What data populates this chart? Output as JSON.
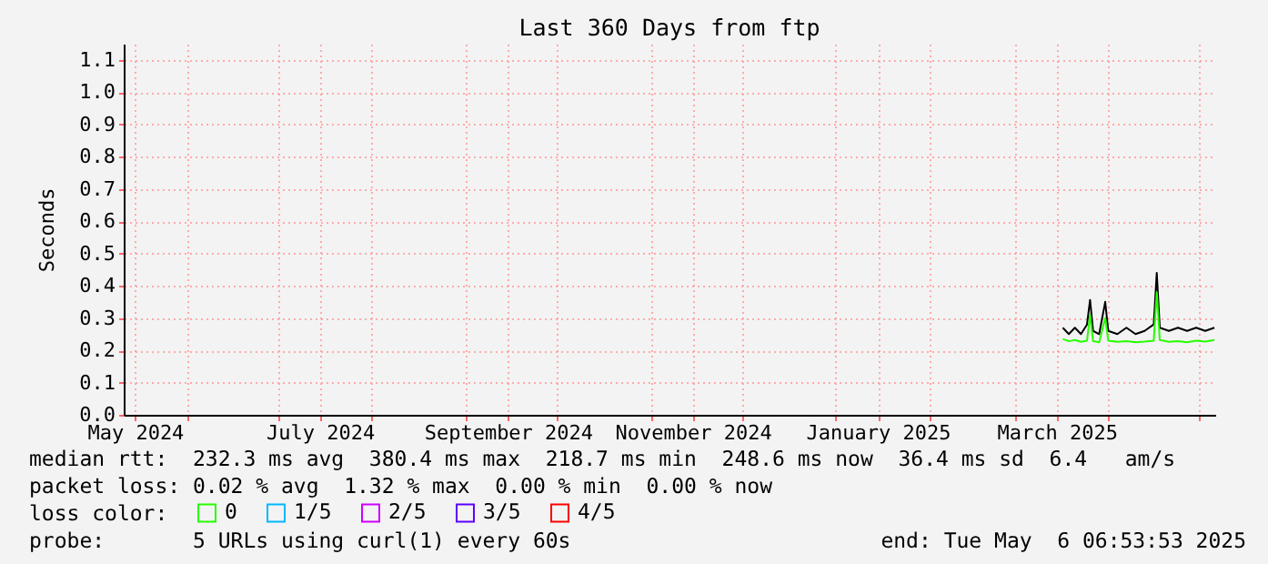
{
  "chart_data": {
    "type": "line",
    "title": "Last 360 Days from ftp",
    "ylabel": "Seconds",
    "x": [
      "2025-03-17",
      "2025-03-19",
      "2025-03-21",
      "2025-03-23",
      "2025-03-25",
      "2025-03-26",
      "2025-03-27",
      "2025-03-29",
      "2025-03-31",
      "2025-04-01",
      "2025-04-04",
      "2025-04-07",
      "2025-04-10",
      "2025-04-13",
      "2025-04-16",
      "2025-04-17",
      "2025-04-18",
      "2025-04-21",
      "2025-04-24",
      "2025-04-27",
      "2025-04-30",
      "2025-05-03",
      "2025-05-06"
    ],
    "series": [
      {
        "color": "#000000",
        "values": [
          0.27,
          0.25,
          0.27,
          0.25,
          0.28,
          0.356,
          0.26,
          0.25,
          0.35,
          0.26,
          0.25,
          0.27,
          0.25,
          0.26,
          0.28,
          0.44,
          0.27,
          0.26,
          0.27,
          0.26,
          0.27,
          0.26,
          0.27
        ]
      },
      {
        "name": "0",
        "color": "#26ff00",
        "values": [
          0.235,
          0.228,
          0.232,
          0.226,
          0.23,
          0.31,
          0.228,
          0.225,
          0.3,
          0.23,
          0.226,
          0.228,
          0.225,
          0.227,
          0.23,
          0.38,
          0.232,
          0.226,
          0.228,
          0.225,
          0.23,
          0.227,
          0.232
        ]
      },
      {
        "name": "1/5",
        "color": "#00b8ff",
        "values": [
          null,
          null,
          null,
          null,
          null,
          null,
          null,
          null,
          null,
          null,
          null,
          null,
          null,
          null,
          null,
          null,
          null,
          null,
          null,
          null,
          null,
          null,
          null
        ]
      },
      {
        "name": "2/5",
        "color": "#cc00ff",
        "values": [
          null,
          null,
          null,
          null,
          null,
          null,
          null,
          null,
          null,
          null,
          null,
          null,
          null,
          null,
          null,
          null,
          null,
          null,
          null,
          null,
          null,
          null,
          null
        ]
      },
      {
        "name": "3/5",
        "color": "#5e00ff",
        "values": [
          null,
          null,
          null,
          null,
          null,
          null,
          null,
          null,
          null,
          null,
          null,
          null,
          null,
          null,
          null,
          null,
          null,
          null,
          null,
          null,
          null,
          null,
          null
        ]
      },
      {
        "name": "4/5",
        "color": "#ff0000",
        "values": [
          null,
          null,
          null,
          null,
          null,
          null,
          null,
          null,
          null,
          null,
          null,
          null,
          null,
          null,
          null,
          null,
          null,
          null,
          null,
          null,
          null,
          null,
          null
        ]
      }
    ],
    "xlim": [
      "2024-05-11T06:53",
      "2025-05-06T06:53"
    ],
    "xticks": [
      {
        "value": "2024-05-15",
        "label": "May 2024"
      },
      {
        "value": "2024-06-01",
        "label": null
      },
      {
        "value": "2024-07-01",
        "label": null
      },
      {
        "value": "2024-07-15",
        "label": "July 2024"
      },
      {
        "value": "2024-08-01",
        "label": null
      },
      {
        "value": "2024-09-01",
        "label": null
      },
      {
        "value": "2024-09-15",
        "label": "September 2024"
      },
      {
        "value": "2024-10-01",
        "label": null
      },
      {
        "value": "2024-11-01",
        "label": null
      },
      {
        "value": "2024-11-15",
        "label": "November 2024"
      },
      {
        "value": "2024-12-01",
        "label": null
      },
      {
        "value": "2025-01-01",
        "label": null
      },
      {
        "value": "2025-01-15",
        "label": "January 2025"
      },
      {
        "value": "2025-02-01",
        "label": null
      },
      {
        "value": "2025-03-01",
        "label": null
      },
      {
        "value": "2025-03-15",
        "label": "March 2025"
      },
      {
        "value": "2025-04-01",
        "label": null
      },
      {
        "value": "2025-05-01",
        "label": null
      }
    ],
    "ylim": [
      0,
      1.15
    ],
    "yticks": [
      {
        "value": 0,
        "label": "0.0"
      },
      0.1,
      0.2,
      0.3,
      0.4,
      0.5,
      0.6,
      0.7,
      0.8,
      0.9,
      {
        "value": 1,
        "label": "1.0"
      },
      1.1
    ],
    "grid": true,
    "legend": "bottom left",
    "line_style": "solid",
    "marker": "none",
    "annotations": [
      "median rtt:  232.3 ms avg  380.4 ms max  218.7 ms min  248.6 ms now  36.4 ms sd  6.4   am/s",
      "packet loss: 0.02 % avg  1.32 % max  0.00 % min  0.00 % now",
      "loss color:",
      "probe:       5 URLs using curl(1) every 60s",
      "end: Tue May  6 06:53:53 2025"
    ]
  }
}
